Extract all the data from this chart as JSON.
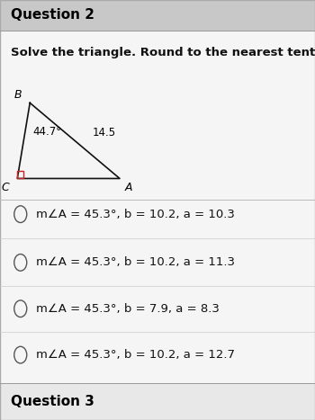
{
  "title": "Question 2",
  "subtitle": "Solve the triangle. Round to the nearest tenth.",
  "bg_color": "#e8e8e8",
  "title_bg": "#c8c8c8",
  "content_bg": "#f5f5f5",
  "triangle": {
    "B": [
      0.095,
      0.755
    ],
    "C": [
      0.055,
      0.575
    ],
    "A": [
      0.38,
      0.575
    ],
    "label_B": "B",
    "label_C": "C",
    "label_A": "A",
    "hyp_label": "14.5",
    "angle_label": "44.7°",
    "line_color": "#111111",
    "right_angle_color": "#cc2222"
  },
  "options": [
    "m∠A = 45.3°, b = 10.2, a = 10.3",
    "m∠A = 45.3°, b = 10.2, a = 11.3",
    "m∠A = 45.3°, b = 7.9, a = 8.3",
    "m∠A = 45.3°, b = 10.2, a = 12.7"
  ],
  "footer": "Question 3",
  "option_font_size": 9.5,
  "title_font_size": 11,
  "subtitle_font_size": 9.5,
  "label_font_size": 9,
  "triangle_font_size": 8.5
}
